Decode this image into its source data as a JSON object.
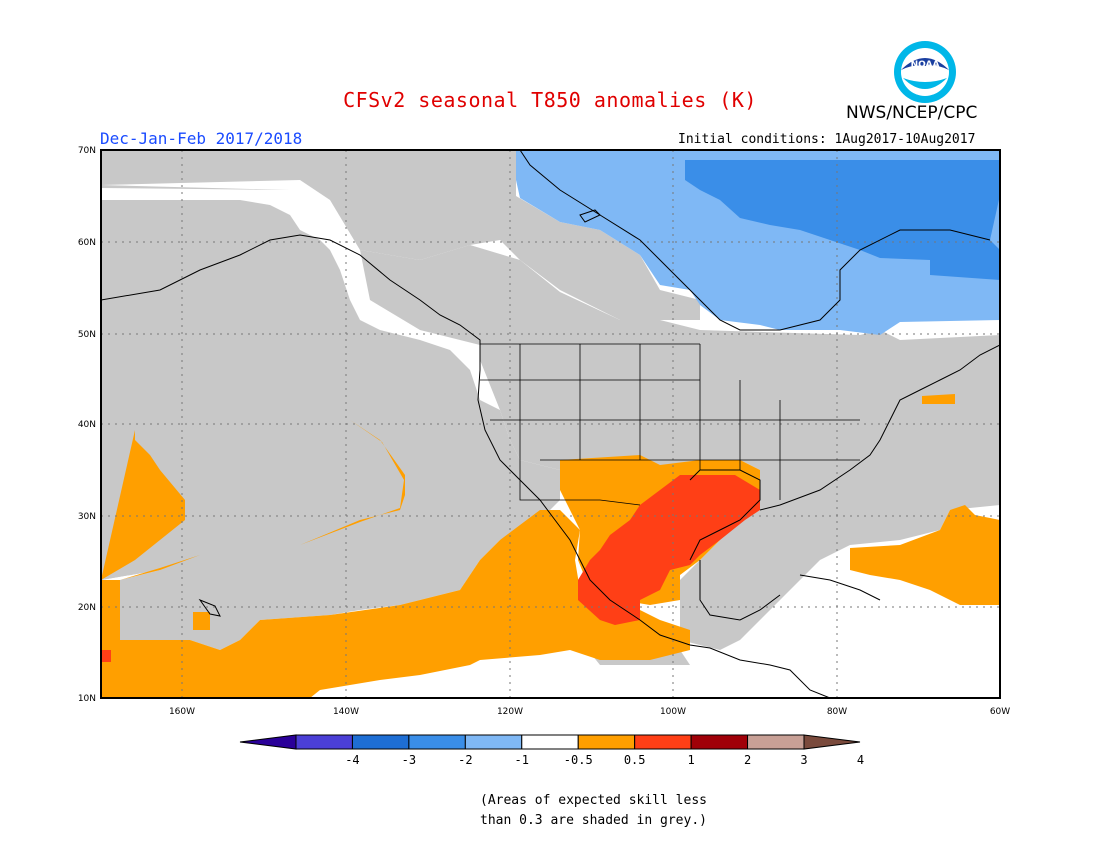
{
  "title": "CFSv2 seasonal T850 anomalies (K)",
  "agency": "NWS/NCEP/CPC",
  "logo_text": "NOAA",
  "season": "Dec-Jan-Feb 2017/2018",
  "initial_conditions": "Initial conditions: 1Aug2017-10Aug2017",
  "footnote_line1": "(Areas of expected skill less",
  "footnote_line2": "than 0.3 are shaded in grey.)",
  "map": {
    "lon_range": [
      "170W",
      "60W"
    ],
    "lat_range": [
      "10N",
      "70N"
    ],
    "lat_labels": [
      "70N",
      "60N",
      "50N",
      "40N",
      "30N",
      "20N",
      "10N"
    ],
    "lon_labels": [
      "160W",
      "140W",
      "120W",
      "100W",
      "80W",
      "60W"
    ]
  },
  "legend": {
    "ticks": [
      "-4",
      "-3",
      "-2",
      "-1",
      "-0.5",
      "0.5",
      "1",
      "2",
      "3",
      "4"
    ],
    "colors": [
      "#2a0099",
      "#4b3fd6",
      "#1e6ed4",
      "#3a8ee8",
      "#7fb8f5",
      "#ffffff",
      "#ff9f00",
      "#ff3f16",
      "#a00008",
      "#c8a096",
      "#7a4a3c"
    ]
  },
  "colors": {
    "grey_low_skill": "#c8c8c8",
    "orange": "#ff9f00",
    "red_orange": "#ff3f16",
    "light_blue": "#7fb8f5",
    "mid_blue": "#3a8ee8",
    "title_red": "#e00000",
    "season_blue": "#1a4bff"
  }
}
